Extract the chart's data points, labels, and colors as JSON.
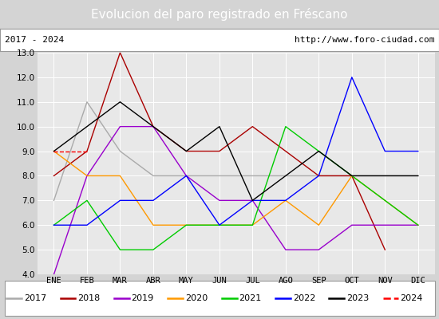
{
  "title": "Evolucion del paro registrado en Fréscano",
  "subtitle_left": "2017 - 2024",
  "subtitle_right": "http://www.foro-ciudad.com",
  "months": [
    "ENE",
    "FEB",
    "MAR",
    "ABR",
    "MAY",
    "JUN",
    "JUL",
    "AGO",
    "SEP",
    "OCT",
    "NOV",
    "DIC"
  ],
  "ylim": [
    4.0,
    13.0
  ],
  "yticks": [
    4.0,
    5.0,
    6.0,
    7.0,
    8.0,
    9.0,
    10.0,
    11.0,
    12.0,
    13.0
  ],
  "series": {
    "2017": {
      "color": "#aaaaaa",
      "linestyle": "solid",
      "data": [
        7.0,
        11.0,
        9.0,
        8.0,
        8.0,
        8.0,
        8.0,
        8.0,
        8.0,
        8.0,
        8.0,
        8.0
      ]
    },
    "2018": {
      "color": "#aa0000",
      "linestyle": "solid",
      "data": [
        8.0,
        9.0,
        13.0,
        10.0,
        9.0,
        9.0,
        10.0,
        9.0,
        8.0,
        8.0,
        5.0,
        null
      ]
    },
    "2019": {
      "color": "#9900cc",
      "linestyle": "solid",
      "data": [
        4.0,
        8.0,
        10.0,
        10.0,
        8.0,
        7.0,
        7.0,
        5.0,
        5.0,
        6.0,
        6.0,
        6.0
      ]
    },
    "2020": {
      "color": "#ff9900",
      "linestyle": "solid",
      "data": [
        9.0,
        8.0,
        8.0,
        6.0,
        6.0,
        6.0,
        6.0,
        7.0,
        6.0,
        8.0,
        7.0,
        6.0
      ]
    },
    "2021": {
      "color": "#00cc00",
      "linestyle": "solid",
      "data": [
        6.0,
        7.0,
        5.0,
        5.0,
        6.0,
        6.0,
        6.0,
        10.0,
        9.0,
        8.0,
        7.0,
        6.0
      ]
    },
    "2022": {
      "color": "#0000ff",
      "linestyle": "solid",
      "data": [
        6.0,
        6.0,
        7.0,
        7.0,
        8.0,
        6.0,
        7.0,
        7.0,
        8.0,
        12.0,
        9.0,
        9.0
      ]
    },
    "2023": {
      "color": "#000000",
      "linestyle": "solid",
      "data": [
        9.0,
        10.0,
        11.0,
        10.0,
        9.0,
        10.0,
        7.0,
        8.0,
        9.0,
        8.0,
        8.0,
        8.0
      ]
    },
    "2024": {
      "color": "#ff0000",
      "linestyle": "dashed",
      "data": [
        9.0,
        9.0,
        null,
        null,
        null,
        null,
        null,
        null,
        null,
        null,
        null,
        null
      ]
    }
  },
  "background_color": "#d4d4d4",
  "plot_bg_color": "#e8e8e8",
  "title_bg_color": "#4472c4",
  "title_color": "#ffffff",
  "title_fontsize": 11,
  "subtitle_fontsize": 8,
  "legend_fontsize": 8,
  "tick_fontsize": 7.5
}
